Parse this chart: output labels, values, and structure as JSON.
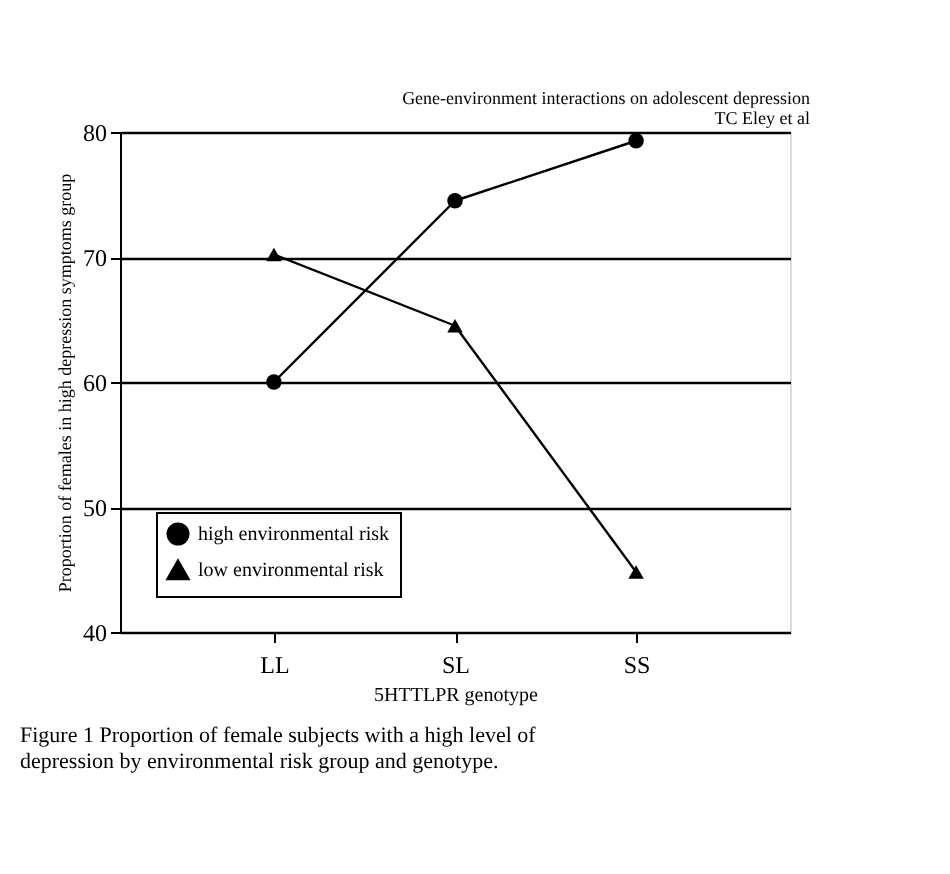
{
  "chart_data": {
    "type": "line",
    "annotations": [
      "Gene-environment interactions on adolescent depression",
      "TC Eley et al",
      "Figure 1  Proportion of female subjects with a high level of depression by environmental risk group and genotype."
    ],
    "xlabel": "5HTTLPR genotype",
    "ylabel": "Proportion of females in high depression symptoms group",
    "categories": [
      "LL",
      "SL",
      "SS"
    ],
    "series": [
      {
        "name": "high environmental risk",
        "color": "#000000",
        "marker": "circle",
        "values": [
          60,
          74.5,
          79.3
        ]
      },
      {
        "name": "low environmental risk",
        "color": "#000000",
        "marker": "triangle",
        "values": [
          70.2,
          64.5,
          44.8
        ]
      }
    ],
    "ylim": [
      40,
      80
    ],
    "yticks": [
      40,
      50,
      60,
      70,
      80
    ],
    "grid": "y",
    "legend": "bottom left",
    "line_style": "solid"
  }
}
